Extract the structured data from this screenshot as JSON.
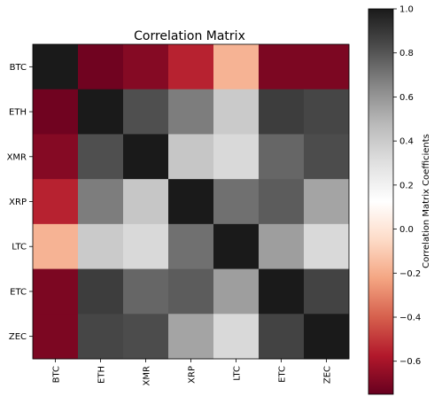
{
  "chart_data": {
    "type": "heatmap",
    "title": "Correlation Matrix",
    "x_categories": [
      "BTC",
      "ETH",
      "XMR",
      "XRP",
      "LTC",
      "ETC",
      "ZEC"
    ],
    "y_categories": [
      "BTC",
      "ETH",
      "XMR",
      "XRP",
      "LTC",
      "ETC",
      "ZEC"
    ],
    "values": [
      [
        1.0,
        -0.73,
        -0.68,
        -0.55,
        -0.18,
        -0.7,
        -0.7
      ],
      [
        -0.73,
        1.0,
        0.82,
        0.68,
        0.4,
        0.88,
        0.85
      ],
      [
        -0.68,
        0.82,
        1.0,
        0.42,
        0.33,
        0.75,
        0.83
      ],
      [
        -0.55,
        0.68,
        0.42,
        1.0,
        0.72,
        0.78,
        0.55
      ],
      [
        -0.18,
        0.4,
        0.33,
        0.72,
        1.0,
        0.57,
        0.33
      ],
      [
        -0.7,
        0.88,
        0.75,
        0.78,
        0.57,
        1.0,
        0.86
      ],
      [
        -0.7,
        0.85,
        0.83,
        0.55,
        0.33,
        0.86,
        1.0
      ]
    ],
    "colorbar": {
      "label": "Correlation Matrix Coefficients",
      "range": [
        -0.75,
        1.0
      ],
      "ticks": [
        1.0,
        0.8,
        0.6,
        0.4,
        0.2,
        0.0,
        -0.2,
        -0.4,
        -0.6
      ],
      "tick_labels": [
        "1.0",
        "0.8",
        "0.6",
        "0.4",
        "0.2",
        "0.0",
        "−0.2",
        "−0.4",
        "−0.6"
      ],
      "colormap": "RdGy"
    },
    "grid": false,
    "xtick_rotation": "vertical"
  }
}
